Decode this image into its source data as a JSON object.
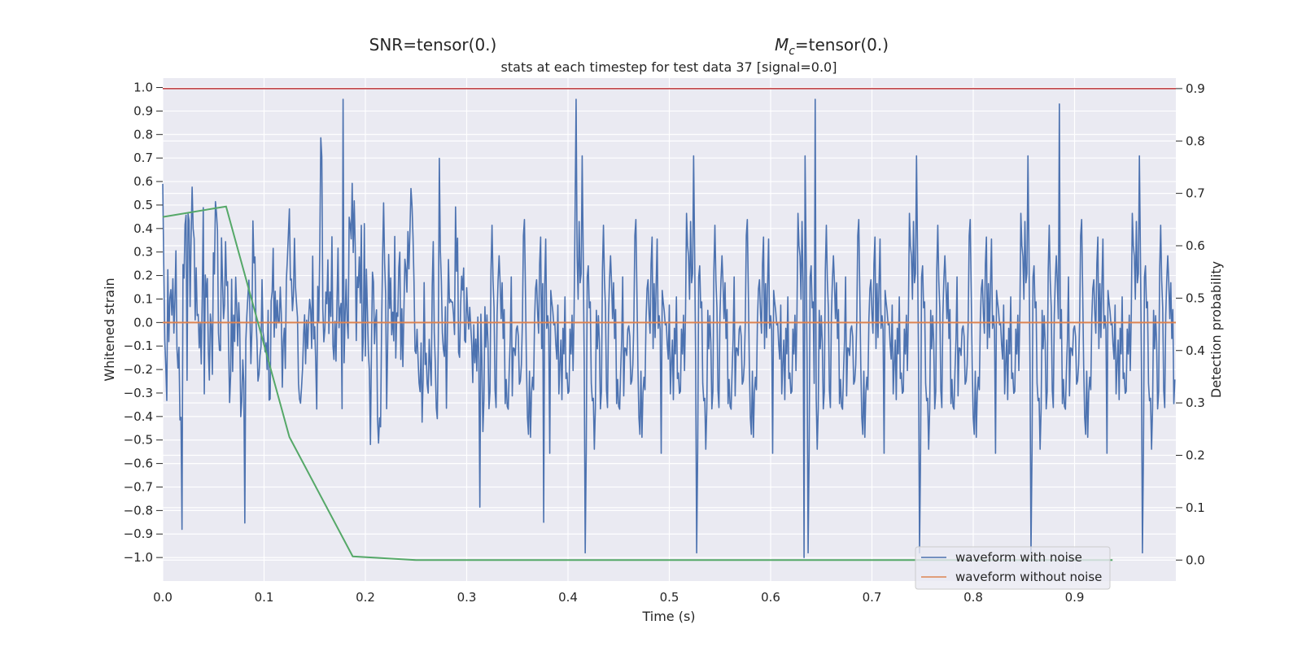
{
  "figure": {
    "snr_label": "SNR=tensor(0.)",
    "mc_label_main": "M",
    "mc_label_sub": "c",
    "mc_label_rest": "=tensor(0.)"
  },
  "chart_data": {
    "type": "line",
    "title": "stats at each timestep for test data 37 [signal=0.0]",
    "xlabel": "Time (s)",
    "ylabel_left": "Whitened strain",
    "ylabel_right": "Detection probability",
    "xlim": [
      0.0,
      1.0
    ],
    "ylim_left": [
      -1.1,
      1.04
    ],
    "ylim_right": [
      -0.04,
      0.92
    ],
    "x_ticks": [
      "0.0",
      "0.1",
      "0.2",
      "0.3",
      "0.4",
      "0.5",
      "0.6",
      "0.7",
      "0.8",
      "0.9"
    ],
    "y_ticks_left": [
      "1.0",
      "0.9",
      "0.8",
      "0.7",
      "0.6",
      "0.5",
      "0.4",
      "0.3",
      "0.2",
      "0.1",
      "0.0",
      "−0.1",
      "−0.2",
      "−0.3",
      "−0.4",
      "−0.5",
      "−0.6",
      "−0.7",
      "−0.8",
      "−0.9",
      "−1.0"
    ],
    "y_ticks_right": [
      "0.9",
      "0.8",
      "0.7",
      "0.6",
      "0.5",
      "0.4",
      "0.3",
      "0.2",
      "0.1",
      "0.0"
    ],
    "grid": true,
    "legend_position": "bottom-right",
    "colors": {
      "noisy": "#4c72b0",
      "clean": "#dd8452",
      "probability": "#55a868",
      "threshold": "#c44e52",
      "plot_bg": "#eaeaf2"
    },
    "series": [
      {
        "name": "waveform with noise",
        "axis": "left",
        "sample_rate_hz": 1000,
        "n_samples": 1000,
        "y_range": [
          -1.0,
          0.95
        ],
        "rendering": "dense noise trace"
      },
      {
        "name": "waveform without noise",
        "axis": "left",
        "x": [
          0.0,
          1.0
        ],
        "y": [
          0.0,
          0.0
        ]
      },
      {
        "axis": "right",
        "x": [
          0.0,
          0.0625,
          0.125,
          0.1875,
          0.25,
          0.3125,
          0.375,
          0.4375,
          0.5,
          0.5625,
          0.625,
          0.6875,
          0.75,
          0.8125,
          0.875,
          0.9375
        ],
        "y": [
          0.655,
          0.675,
          0.235,
          0.007,
          0.0,
          0.0,
          0.0,
          0.0,
          0.0,
          0.0,
          0.0,
          0.0,
          0.0,
          0.0,
          0.0,
          0.0
        ]
      },
      {
        "axis": "right",
        "type": "hline",
        "y": 0.9
      }
    ],
    "noise_peaks": [
      {
        "x": 0.178,
        "y": 0.95
      },
      {
        "x": 0.408,
        "y": 0.95
      },
      {
        "x": 0.644,
        "y": 0.95
      },
      {
        "x": 0.885,
        "y": 0.93
      },
      {
        "x": 0.633,
        "y": -1.0
      },
      {
        "x": 0.019,
        "y": -0.88
      },
      {
        "x": 0.376,
        "y": -0.85
      }
    ]
  }
}
